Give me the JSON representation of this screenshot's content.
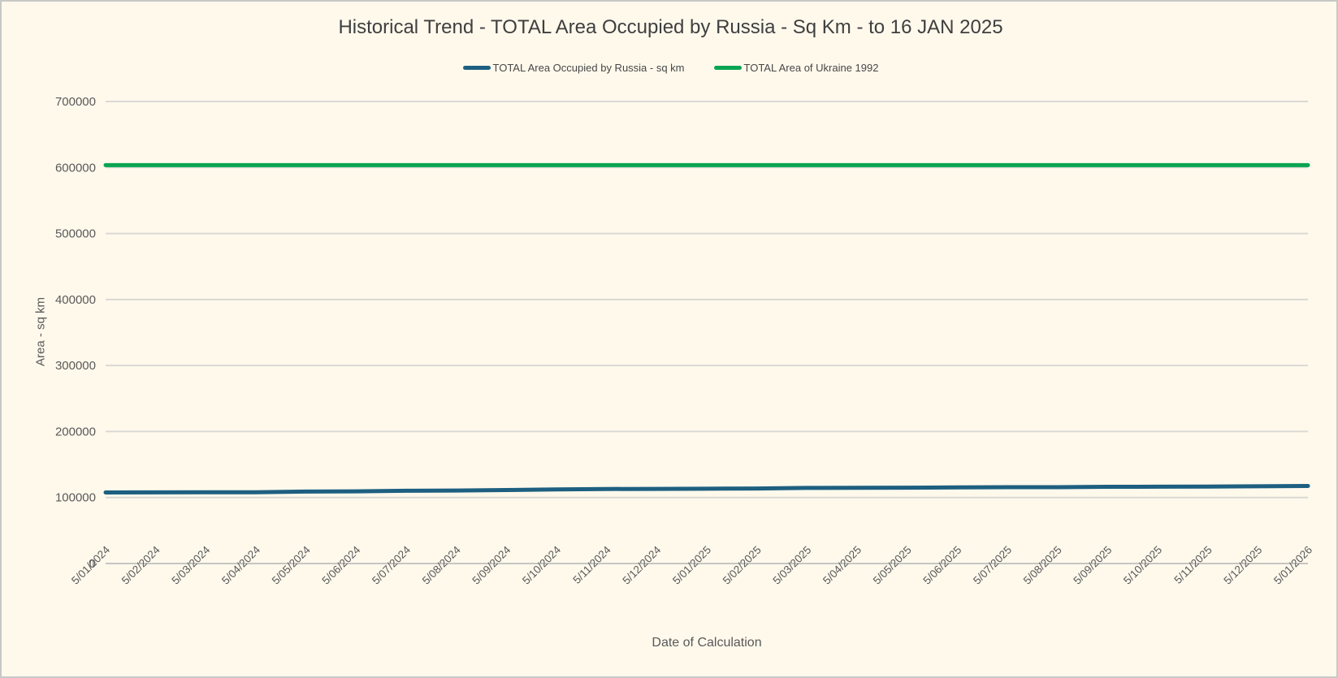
{
  "title": "Historical Trend - TOTAL Area Occupied by Russia - Sq Km - to 16 JAN 2025",
  "colors": {
    "background": "#FFF9EC",
    "occupied_line": "#1D5F80",
    "ukraine_line": "#0AA552",
    "gridline": "#D9D9D4",
    "axis_line": "#C6C6C2",
    "title_text": "#3F3F3F",
    "tick_text": "#595959"
  },
  "chart_data": {
    "type": "line",
    "title": "Historical Trend - TOTAL Area Occupied by Russia - Sq Km - to 16 JAN 2025",
    "xlabel": "Date of Calculation",
    "ylabel": "Area - sq km",
    "ylim": [
      0,
      700000
    ],
    "y_ticks": [
      0,
      100000,
      200000,
      300000,
      400000,
      500000,
      600000,
      700000
    ],
    "grid": "horizontal",
    "legend_position": "top-center",
    "categories": [
      "5/01/2024",
      "5/02/2024",
      "5/03/2024",
      "5/04/2024",
      "5/05/2024",
      "5/06/2024",
      "5/07/2024",
      "5/08/2024",
      "5/09/2024",
      "5/10/2024",
      "5/11/2024",
      "5/12/2024",
      "5/01/2025",
      "5/02/2025",
      "5/03/2025",
      "5/04/2025",
      "5/05/2025",
      "5/06/2025",
      "5/07/2025",
      "5/08/2025",
      "5/09/2025",
      "5/10/2025",
      "5/11/2025",
      "5/12/2025",
      "5/01/2026"
    ],
    "series": [
      {
        "name": "TOTAL Area Occupied by Russia - sq km",
        "color": "#1D5F80",
        "values": [
          107700,
          107800,
          107900,
          108000,
          109000,
          109300,
          110200,
          110500,
          111400,
          112200,
          112900,
          113100,
          113400,
          113600,
          114500,
          114700,
          114800,
          115400,
          115600,
          115700,
          116200,
          116400,
          116500,
          117000,
          117500
        ]
      },
      {
        "name": "TOTAL Area of Ukraine 1992",
        "color": "#0AA552",
        "constant_value": 603628
      }
    ]
  }
}
